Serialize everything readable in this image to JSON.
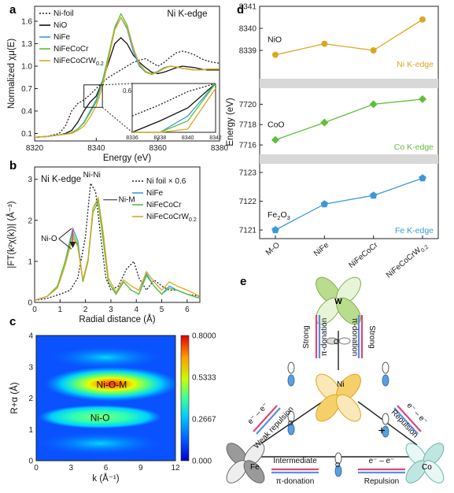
{
  "chart_data": [
    {
      "panel": "a",
      "type": "line",
      "title": "Ni K-edge",
      "xlabel": "Energy (eV)",
      "ylabel": "Normalized χμ(E)",
      "xlim": [
        8320,
        8380
      ],
      "ylim": [
        0.0,
        1.8
      ],
      "xticks": [
        8320,
        8340,
        8360,
        8380
      ],
      "yticks": [
        0.1,
        0.4,
        0.7,
        1.0,
        1.3,
        1.6
      ],
      "series": [
        {
          "name": "Ni-foil",
          "color": "#222222",
          "dash": true,
          "x": [
            8320,
            8324,
            8328,
            8330,
            8332,
            8334,
            8336,
            8338,
            8340,
            8342,
            8344,
            8346,
            8348,
            8350,
            8352,
            8354,
            8356,
            8358,
            8360,
            8362,
            8364,
            8366,
            8368,
            8370,
            8372,
            8374,
            8376,
            8378,
            8380
          ],
          "y": [
            0.05,
            0.06,
            0.1,
            0.2,
            0.4,
            0.5,
            0.55,
            0.62,
            0.7,
            0.78,
            0.85,
            0.9,
            0.95,
            1.0,
            1.05,
            1.08,
            1.1,
            1.05,
            1.0,
            1.05,
            1.12,
            1.18,
            1.2,
            1.18,
            1.15,
            1.1,
            1.07,
            1.05,
            1.04
          ]
        },
        {
          "name": "NiO",
          "color": "#111111",
          "x": [
            8320,
            8324,
            8328,
            8330,
            8332,
            8334,
            8336,
            8338,
            8340,
            8342,
            8344,
            8346,
            8348,
            8350,
            8352,
            8354,
            8356,
            8358,
            8360,
            8362,
            8364,
            8366,
            8368,
            8370,
            8372,
            8374,
            8376,
            8378,
            8380
          ],
          "y": [
            0.05,
            0.06,
            0.08,
            0.1,
            0.14,
            0.25,
            0.4,
            0.52,
            0.6,
            0.8,
            1.05,
            1.3,
            1.38,
            1.3,
            1.15,
            1.05,
            0.98,
            0.92,
            0.9,
            0.92,
            0.95,
            0.98,
            1.0,
            0.99,
            0.98,
            0.96,
            0.95,
            0.95,
            0.95
          ]
        },
        {
          "name": "NiFe",
          "color": "#3a9ad9",
          "x": [
            8320,
            8324,
            8328,
            8330,
            8332,
            8334,
            8336,
            8338,
            8340,
            8342,
            8344,
            8346,
            8348,
            8350,
            8352,
            8354,
            8356,
            8358,
            8360,
            8362,
            8364,
            8366,
            8368,
            8370,
            8372,
            8374,
            8376,
            8378,
            8380
          ],
          "y": [
            0.05,
            0.06,
            0.08,
            0.09,
            0.11,
            0.16,
            0.25,
            0.4,
            0.55,
            0.8,
            1.15,
            1.5,
            1.65,
            1.5,
            1.2,
            1.0,
            0.92,
            0.9,
            0.93,
            0.98,
            1.0,
            0.99,
            0.97,
            0.96,
            0.95,
            0.95,
            0.96,
            0.96,
            0.96
          ]
        },
        {
          "name": "NiFeCoCr",
          "color": "#5fbf3a",
          "x": [
            8320,
            8324,
            8328,
            8330,
            8332,
            8334,
            8336,
            8338,
            8340,
            8342,
            8344,
            8346,
            8348,
            8350,
            8352,
            8354,
            8356,
            8358,
            8360,
            8362,
            8364,
            8366,
            8368,
            8370,
            8372,
            8374,
            8376,
            8378,
            8380
          ],
          "y": [
            0.05,
            0.06,
            0.08,
            0.09,
            0.11,
            0.16,
            0.24,
            0.38,
            0.52,
            0.78,
            1.15,
            1.52,
            1.7,
            1.55,
            1.25,
            1.02,
            0.92,
            0.89,
            0.92,
            0.97,
            1.0,
            0.99,
            0.97,
            0.96,
            0.95,
            0.95,
            0.96,
            0.96,
            0.96
          ]
        },
        {
          "name": "NiFeCoCrW0.2",
          "color": "#d9a821",
          "x": [
            8320,
            8324,
            8328,
            8330,
            8332,
            8334,
            8336,
            8338,
            8340,
            8342,
            8344,
            8346,
            8348,
            8350,
            8352,
            8354,
            8356,
            8358,
            8360,
            8362,
            8364,
            8366,
            8368,
            8370,
            8372,
            8374,
            8376,
            8378,
            8380
          ],
          "y": [
            0.05,
            0.06,
            0.08,
            0.09,
            0.1,
            0.14,
            0.2,
            0.32,
            0.47,
            0.72,
            1.1,
            1.48,
            1.65,
            1.52,
            1.25,
            1.03,
            0.93,
            0.9,
            0.92,
            0.97,
            1.0,
            0.99,
            0.97,
            0.96,
            0.95,
            0.95,
            0.96,
            0.96,
            0.96
          ]
        }
      ],
      "inset": {
        "xlim": [
          8336,
          8342
        ],
        "xticks": [
          8336,
          8338,
          8340,
          8342
        ],
        "ytick": "0.6"
      }
    },
    {
      "panel": "b",
      "type": "line",
      "title": "Ni K-edge",
      "xlabel": "Radial distance (Å)",
      "ylabel": "|FT(k²χ(k))| (Å⁻³)",
      "xlim": [
        0,
        6.5
      ],
      "ylim": [
        0,
        3.3
      ],
      "xticks": [
        0,
        1,
        2,
        3,
        4,
        5,
        6
      ],
      "yticks": [
        0,
        1,
        2,
        3
      ],
      "annotations": [
        "Ni-Ni",
        "Ni-M",
        "Ni-O"
      ],
      "series": [
        {
          "name": "Ni foil × 0.6",
          "color": "#222222",
          "dash": true,
          "x": [
            0,
            0.5,
            1.0,
            1.4,
            1.7,
            2.0,
            2.2,
            2.4,
            2.6,
            2.8,
            3.0,
            3.3,
            3.6,
            3.9,
            4.1,
            4.4,
            4.7,
            5.0,
            5.3,
            5.6,
            6.0,
            6.5
          ],
          "y": [
            0.05,
            0.1,
            0.2,
            0.3,
            0.6,
            1.6,
            2.9,
            2.7,
            1.6,
            0.6,
            0.3,
            0.4,
            0.8,
            1.0,
            0.6,
            0.3,
            0.55,
            0.4,
            0.3,
            0.3,
            0.2,
            0.15
          ]
        },
        {
          "name": "NiFe",
          "color": "#3a9ad9",
          "x": [
            0,
            0.5,
            0.9,
            1.2,
            1.5,
            1.7,
            1.9,
            2.1,
            2.3,
            2.5,
            2.7,
            2.9,
            3.2,
            3.5,
            3.8,
            4.1,
            4.4,
            4.7,
            5.0,
            5.3,
            5.6,
            6.0,
            6.5
          ],
          "y": [
            0.05,
            0.15,
            0.4,
            1.0,
            1.8,
            1.5,
            0.5,
            1.0,
            2.3,
            2.5,
            1.6,
            0.5,
            0.2,
            0.5,
            0.3,
            0.2,
            0.7,
            0.4,
            0.2,
            0.4,
            0.3,
            0.2,
            0.1
          ]
        },
        {
          "name": "NiFeCoCr",
          "color": "#5fbf3a",
          "x": [
            0,
            0.5,
            0.9,
            1.2,
            1.5,
            1.7,
            1.9,
            2.1,
            2.3,
            2.5,
            2.7,
            2.9,
            3.2,
            3.5,
            3.8,
            4.1,
            4.4,
            4.7,
            5.0,
            5.3,
            5.6,
            6.0,
            6.5
          ],
          "y": [
            0.05,
            0.15,
            0.4,
            1.0,
            1.7,
            1.4,
            0.5,
            1.0,
            2.2,
            2.45,
            1.5,
            0.5,
            0.2,
            0.5,
            0.3,
            0.2,
            0.65,
            0.4,
            0.2,
            0.35,
            0.3,
            0.2,
            0.1
          ]
        },
        {
          "name": "NiFeCoCrW0.2",
          "color": "#d9a821",
          "x": [
            0,
            0.5,
            0.9,
            1.2,
            1.5,
            1.7,
            1.9,
            2.1,
            2.3,
            2.5,
            2.7,
            2.9,
            3.2,
            3.5,
            3.8,
            4.1,
            4.4,
            4.7,
            5.0,
            5.3,
            5.6,
            6.0,
            6.5
          ],
          "y": [
            0.05,
            0.15,
            0.35,
            0.9,
            1.6,
            1.35,
            0.55,
            1.05,
            2.3,
            2.55,
            1.7,
            0.6,
            0.25,
            0.55,
            0.4,
            0.3,
            0.75,
            0.5,
            0.3,
            0.5,
            0.4,
            0.3,
            0.15
          ]
        }
      ]
    },
    {
      "panel": "c",
      "type": "heatmap",
      "xlabel": "k (Å⁻¹)",
      "ylabel": "R+α (Å)",
      "xlim": [
        0,
        12
      ],
      "ylim": [
        0,
        4
      ],
      "xticks": [
        0,
        3,
        6,
        9,
        12
      ],
      "yticks": [
        0,
        1,
        2,
        3,
        4
      ],
      "colorbar_ticks": [
        "0.8000",
        "0.5333",
        "0.2667",
        "0.000"
      ],
      "colorbar_range": [
        0,
        0.8
      ],
      "features": [
        {
          "label": "Ni-O-M",
          "k": 6.5,
          "r": 2.45,
          "peak": 0.8
        },
        {
          "label": "Ni-O",
          "k": 5.5,
          "r": 1.4,
          "peak": 0.45
        }
      ]
    },
    {
      "panel": "d",
      "type": "line",
      "ylabel": "Energy (eV)",
      "categories": [
        "M-O",
        "NiFe",
        "NiFeCoCr",
        "NiFeCoCrW0.2"
      ],
      "subplots": [
        {
          "name": "Ni K-edge",
          "label": "NiO",
          "color": "#d9a821",
          "marker": "circle",
          "ylim": [
            8338,
            8341
          ],
          "yticks": [
            8339,
            8340,
            8341
          ],
          "values": [
            8338.8,
            8339.3,
            8339.0,
            8340.4
          ]
        },
        {
          "name": "Co K-edge",
          "label": "CoO",
          "color": "#5fbf3a",
          "marker": "diamond",
          "ylim": [
            7715,
            7721.5
          ],
          "yticks": [
            7716,
            7718,
            7720
          ],
          "values": [
            7716.5,
            7718.2,
            7720.0,
            7720.5
          ]
        },
        {
          "name": "Fe K-edge",
          "label": "Fe2O3",
          "color": "#3a9ad9",
          "marker": "pentagon",
          "ylim": [
            7120.7,
            7123.3
          ],
          "yticks": [
            7121,
            7122,
            7123
          ],
          "values": [
            7121.0,
            7121.9,
            7122.2,
            7122.8
          ]
        }
      ]
    }
  ],
  "panels": {
    "a": "a",
    "b": "b",
    "c": "c",
    "d": "d",
    "e": "e"
  },
  "diagram_e": {
    "atoms": {
      "w": "W",
      "ni": "Ni",
      "fe": "Fe",
      "co": "Co",
      "o": "O"
    },
    "labels": {
      "strong_left": "Strong",
      "pi_left": "π-donation",
      "strong_right": "Strong",
      "pi_right": "π-donation",
      "ee_left": "e⁻ – e⁻",
      "weak_rep": "Weak repulsion",
      "ee_right": "e⁻ – e⁻",
      "rep_right": "Repulsion",
      "intermediate": "Intermediate",
      "pi_bottom": "π-donation",
      "ee_bottom": "e⁻ – e⁻",
      "rep_bottom": "Repulsion",
      "plus": "+"
    }
  }
}
